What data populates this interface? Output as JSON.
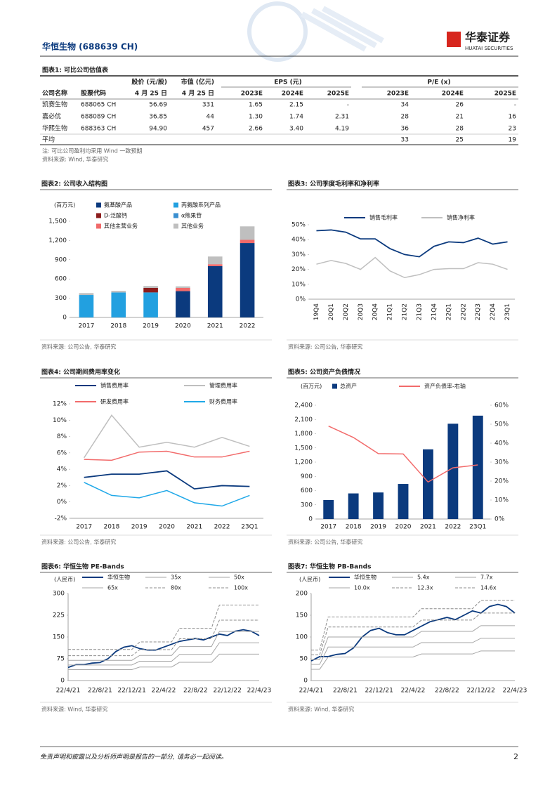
{
  "header": {
    "company": "华恒生物 (688639 CH)",
    "logo": "华泰证券",
    "logo_en": "HUATAI SECURITIES"
  },
  "table": {
    "title": "图表1: 可比公司估值表",
    "group_headers": [
      "股价 (元/股)",
      "市值 (亿元)",
      "EPS (元)",
      "P/E (x)"
    ],
    "columns": [
      "公司名称",
      "股票代码",
      "4 月 25 日",
      "4 月 25 日",
      "2023E",
      "2024E",
      "2025E",
      "2023E",
      "2024E",
      "2025E"
    ],
    "rows": [
      [
        "凯赛生物",
        "688065 CH",
        "56.69",
        "331",
        "1.65",
        "2.15",
        "-",
        "34",
        "26",
        "-"
      ],
      [
        "嘉必优",
        "688089 CH",
        "36.85",
        "44",
        "1.30",
        "1.74",
        "2.31",
        "28",
        "21",
        "16"
      ],
      [
        "华熙生物",
        "688363 CH",
        "94.90",
        "457",
        "2.66",
        "3.40",
        "4.19",
        "36",
        "28",
        "23"
      ],
      [
        "平均",
        null,
        null,
        null,
        null,
        null,
        null,
        "33",
        "25",
        "19"
      ]
    ],
    "note": "注: 可比公司盈利均采用 Wind 一致预期",
    "source": "资料来源: Wind, 华泰研究"
  },
  "chart_data": [
    {
      "type": "bar",
      "stacked": true,
      "label": "图表2: 公司收入结构图",
      "ylabel": "(百万元)",
      "categories": [
        "2017",
        "2018",
        "2019",
        "2020",
        "2021",
        "2022"
      ],
      "series": [
        {
          "name": "氨基酸产品",
          "color": "#0b3a7e",
          "values": [
            0,
            0,
            0,
            410,
            800,
            1160
          ]
        },
        {
          "name": "丙氨酸系列产品",
          "color": "#22a0e0",
          "values": [
            350,
            390,
            390,
            0,
            0,
            0
          ]
        },
        {
          "name": "D-泛酸钙",
          "color": "#8b1c1c",
          "values": [
            0,
            0,
            70,
            0,
            0,
            0
          ]
        },
        {
          "name": "α熊果苷",
          "color": "#3a8fd0",
          "values": [
            0,
            0,
            0,
            0,
            0,
            0
          ]
        },
        {
          "name": "其他主营业务",
          "color": "#f06a6a",
          "values": [
            0,
            0,
            0,
            50,
            30,
            50
          ]
        },
        {
          "name": "其他业务",
          "color": "#bfbfbf",
          "values": [
            30,
            25,
            30,
            25,
            120,
            210
          ]
        }
      ],
      "ylim": [
        0,
        1500
      ],
      "yticks": [
        0,
        300,
        600,
        900,
        {
          "value": 1200,
          "label": "1,200"
        },
        {
          "value": 1500,
          "label": "1,500"
        }
      ],
      "source": "资料来源: 公司公告, 华泰研究"
    },
    {
      "type": "line",
      "label": "图表3: 公司季度毛利率和净利率",
      "categories": [
        "19Q4",
        "20Q1",
        "20Q2",
        "20Q3",
        "20Q4",
        "21Q1",
        "21Q2",
        "21Q3",
        "21Q4",
        "22Q1",
        "22Q2",
        "22Q3",
        "22Q4",
        "23Q1"
      ],
      "series": [
        {
          "name": "销售毛利率",
          "color": "#0b3a7e",
          "values": [
            46,
            46.5,
            45,
            40.5,
            40.5,
            34,
            30,
            28.5,
            35.5,
            38.5,
            38,
            41,
            37,
            38.5
          ]
        },
        {
          "name": "销售净利率",
          "color": "#bfbfbf",
          "values": [
            23.5,
            26,
            24,
            20,
            28,
            19,
            14.5,
            16.5,
            20,
            20.5,
            20.5,
            24.5,
            23.5,
            20
          ]
        }
      ],
      "ylim": [
        0,
        50
      ],
      "yticks": [
        {
          "value": 0,
          "label": "0%"
        },
        {
          "value": 10,
          "label": "10%"
        },
        {
          "value": 20,
          "label": "20%"
        },
        {
          "value": 30,
          "label": "30%"
        },
        {
          "value": 40,
          "label": "40%"
        },
        {
          "value": 50,
          "label": "50%"
        }
      ],
      "source": "资料来源: 公司公告, 华泰研究"
    },
    {
      "type": "line",
      "label": "图表4: 公司期间费用率变化",
      "categories": [
        "2017",
        "2018",
        "2019",
        "2020",
        "2021",
        "2022",
        "23Q1"
      ],
      "series": [
        {
          "name": "销售费用率",
          "color": "#0b3a7e",
          "values": [
            3.0,
            3.4,
            3.4,
            3.8,
            1.6,
            2.0,
            1.9
          ]
        },
        {
          "name": "管理费用率",
          "color": "#bfbfbf",
          "values": [
            5.4,
            10.6,
            6.7,
            7.3,
            6.7,
            7.9,
            6.8
          ]
        },
        {
          "name": "研发费用率",
          "color": "#f26b6b",
          "values": [
            5.2,
            5.1,
            6.1,
            6.2,
            5.5,
            5.5,
            6.2
          ]
        },
        {
          "name": "财务费用率",
          "color": "#1fa8e8",
          "values": [
            2.4,
            0.8,
            0.5,
            1.4,
            -0.1,
            -0.5,
            0.8
          ]
        }
      ],
      "ylim": [
        -2,
        12
      ],
      "yticks": [
        {
          "value": -2,
          "label": "-2%"
        },
        {
          "value": 0,
          "label": "0%"
        },
        {
          "value": 2,
          "label": "2%"
        },
        {
          "value": 4,
          "label": "4%"
        },
        {
          "value": 6,
          "label": "6%"
        },
        {
          "value": 8,
          "label": "8%"
        },
        {
          "value": 10,
          "label": "10%"
        },
        {
          "value": 12,
          "label": "12%"
        }
      ],
      "source": "资料来源: 公司公告, 华泰研究"
    },
    {
      "type": "bar",
      "label": "图表5: 公司资产负债情况",
      "ylabel": "(百万元)",
      "categories": [
        "2017",
        "2018",
        "2019",
        "2020",
        "2021",
        "2022",
        "23Q1"
      ],
      "series": [
        {
          "name": "总资产",
          "color": "#0b3a7e",
          "values": [
            400,
            540,
            560,
            740,
            1470,
            2010,
            2180
          ]
        },
        {
          "name": "资产负债率-右轴",
          "color": "#f26b6b",
          "type": "line",
          "axis": "y2",
          "values": [
            49,
            43,
            34.5,
            34.3,
            19.5,
            27,
            28.5
          ]
        }
      ],
      "ylim": [
        0,
        2400
      ],
      "yticks": [
        0,
        300,
        600,
        900,
        {
          "value": 1200,
          "label": "1,200"
        },
        {
          "value": 1500,
          "label": "1,500"
        },
        {
          "value": 1800,
          "label": "1,800"
        },
        {
          "value": 2100,
          "label": "2,100"
        },
        {
          "value": 2400,
          "label": "2,400"
        }
      ],
      "y2lim": [
        0,
        60
      ],
      "y2ticks": [
        {
          "value": 0,
          "label": "0%"
        },
        {
          "value": 10,
          "label": "10%"
        },
        {
          "value": 20,
          "label": "20%"
        },
        {
          "value": 30,
          "label": "30%"
        },
        {
          "value": 40,
          "label": "40%"
        },
        {
          "value": 50,
          "label": "50%"
        },
        {
          "value": 60,
          "label": "60%"
        }
      ],
      "source": "资料来源: 公司公告, 华泰研究"
    },
    {
      "type": "line",
      "label": "图表6: 华恒生物 PE-Bands",
      "ylabel": "(人民币)",
      "categories": [
        "22/4/21",
        null,
        null,
        null,
        "22/8/21",
        null,
        null,
        null,
        "22/12/21",
        null,
        null,
        null,
        "22/4/22",
        null,
        null,
        null,
        "22/8/22",
        null,
        null,
        null,
        "22/12/22",
        null,
        null,
        null,
        "22/4/23"
      ],
      "series": [
        {
          "name": "华恒生物",
          "color": "#0b3a7e",
          "values": [
            45,
            55,
            55,
            60,
            62,
            75,
            100,
            115,
            120,
            110,
            105,
            105,
            115,
            125,
            135,
            140,
            145,
            140,
            150,
            160,
            155,
            170,
            175,
            170,
            155
          ]
        },
        {
          "name": "35x",
          "color": "#a6a6a6",
          "values": [
            37.5,
            37.5,
            37.5,
            37.5,
            37.5,
            37.5,
            37.5,
            37.5,
            37.5,
            46.6,
            46.6,
            46.6,
            46.6,
            46.6,
            63,
            63,
            63,
            63,
            63,
            91,
            91,
            91,
            91,
            91,
            91
          ]
        },
        {
          "name": "50x",
          "color": "#a6a6a6",
          "values": [
            53.5,
            53.5,
            53.5,
            53.5,
            53.5,
            53.5,
            53.5,
            53.5,
            53.5,
            66.5,
            66.5,
            66.5,
            66.5,
            66.5,
            90,
            90,
            90,
            90,
            90,
            130,
            130,
            130,
            130,
            130,
            130
          ]
        },
        {
          "name": "65x",
          "color": "#a6a6a6",
          "values": [
            69.6,
            69.6,
            69.6,
            69.6,
            69.6,
            69.6,
            69.6,
            69.6,
            69.6,
            86.5,
            86.5,
            86.5,
            86.5,
            86.5,
            117,
            117,
            117,
            117,
            117,
            169,
            169,
            169,
            169,
            169,
            169
          ]
        },
        {
          "name": "80x",
          "color": "#8c8c8c",
          "dashed": true,
          "values": [
            85.6,
            85.6,
            85.6,
            85.6,
            85.6,
            85.6,
            85.6,
            85.6,
            85.6,
            106.4,
            106.4,
            106.4,
            106.4,
            106.4,
            144,
            144,
            144,
            144,
            144,
            208,
            208,
            208,
            208,
            208,
            208
          ]
        },
        {
          "name": "100x",
          "color": "#8c8c8c",
          "dashed": true,
          "values": [
            107,
            107,
            107,
            107,
            107,
            107,
            107,
            107,
            107,
            133,
            133,
            133,
            133,
            133,
            180,
            180,
            180,
            180,
            180,
            260,
            260,
            260,
            260,
            260,
            260
          ]
        }
      ],
      "ylim": [
        0,
        300
      ],
      "yticks": [
        0,
        75,
        150,
        225,
        300
      ],
      "source": "资料来源: Wind, 华泰研究"
    },
    {
      "type": "line",
      "label": "图表7: 华恒生物 PB-Bands",
      "ylabel": "(人民币)",
      "categories": [
        "22/4/21",
        null,
        null,
        null,
        "22/8/21",
        null,
        null,
        null,
        "22/12/21",
        null,
        null,
        null,
        "22/4/22",
        null,
        null,
        null,
        "22/8/22",
        null,
        null,
        null,
        "22/12/22",
        null,
        null,
        null,
        "22/4/23"
      ],
      "series": [
        {
          "name": "华恒生物",
          "color": "#0b3a7e",
          "values": [
            45,
            55,
            55,
            60,
            62,
            75,
            100,
            115,
            120,
            110,
            105,
            105,
            115,
            125,
            135,
            140,
            145,
            140,
            150,
            160,
            155,
            170,
            175,
            170,
            155
          ]
        },
        {
          "name": "5.4x",
          "color": "#a6a6a6",
          "values": [
            25.9,
            25.9,
            54,
            54,
            54,
            54,
            54,
            54,
            54,
            54,
            54,
            54,
            54,
            61,
            61,
            61,
            61,
            61,
            61,
            61,
            68,
            68,
            68,
            68,
            68
          ]
        },
        {
          "name": "7.7x",
          "color": "#a6a6a6",
          "values": [
            37,
            37,
            77,
            77,
            77,
            77,
            77,
            77,
            77,
            77,
            77,
            77,
            77,
            87,
            87,
            87,
            87,
            87,
            87,
            87,
            97,
            97,
            97,
            97,
            97
          ]
        },
        {
          "name": "10.0x",
          "color": "#a6a6a6",
          "values": [
            48,
            48,
            100,
            100,
            100,
            100,
            100,
            100,
            100,
            100,
            100,
            100,
            100,
            113,
            113,
            113,
            113,
            113,
            113,
            113,
            126,
            126,
            126,
            126,
            126
          ]
        },
        {
          "name": "12.3x",
          "color": "#8c8c8c",
          "dashed": true,
          "values": [
            59,
            59,
            123,
            123,
            123,
            123,
            123,
            123,
            123,
            123,
            123,
            123,
            123,
            139,
            139,
            139,
            139,
            139,
            139,
            139,
            155,
            155,
            155,
            155,
            155
          ]
        },
        {
          "name": "14.6x",
          "color": "#8c8c8c",
          "dashed": true,
          "values": [
            70,
            70,
            146,
            146,
            146,
            146,
            146,
            146,
            146,
            146,
            146,
            146,
            146,
            165,
            165,
            165,
            165,
            165,
            165,
            165,
            184,
            184,
            184,
            184,
            184
          ]
        }
      ],
      "ylim": [
        0,
        200
      ],
      "yticks": [
        0,
        50,
        100,
        150,
        200
      ],
      "source": "资料来源: Wind, 华泰研究"
    }
  ],
  "footer": {
    "disclaimer": "免责声明和披露以及分析师声明是报告的一部分, 请务必一起阅读。",
    "page": "2"
  }
}
